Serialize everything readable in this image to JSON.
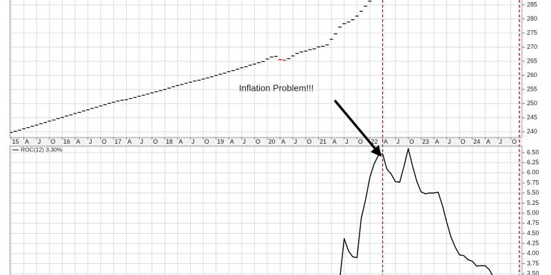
{
  "chart_data": [
    {
      "type": "price",
      "annotation": "Inflation Problem!!!",
      "up_color": "#000000",
      "down_color": "#cc0000",
      "xlim": [
        "2015-01",
        "2024-12"
      ],
      "ylim": [
        238,
        286.7
      ],
      "yticks": [
        240,
        245,
        250,
        255,
        260,
        265,
        270,
        275,
        280,
        285
      ],
      "grid": true,
      "markers": [
        "2022-04",
        "2024-12"
      ],
      "marker_color": "#cc0000",
      "xticks": [
        {
          "value": "2015-01",
          "label": "15"
        },
        {
          "value": "2015-04",
          "label": "A"
        },
        {
          "value": "2015-07",
          "label": "J"
        },
        {
          "value": "2015-10",
          "label": "O"
        },
        {
          "value": "2016-01",
          "label": "16"
        },
        {
          "value": "2016-04",
          "label": "A"
        },
        {
          "value": "2016-07",
          "label": "J"
        },
        {
          "value": "2016-10",
          "label": "O"
        },
        {
          "value": "2017-01",
          "label": "17"
        },
        {
          "value": "2017-04",
          "label": "A"
        },
        {
          "value": "2017-07",
          "label": "J"
        },
        {
          "value": "2017-10",
          "label": "O"
        },
        {
          "value": "2018-01",
          "label": "18"
        },
        {
          "value": "2018-04",
          "label": "A"
        },
        {
          "value": "2018-07",
          "label": "J"
        },
        {
          "value": "2018-10",
          "label": "O"
        },
        {
          "value": "2019-01",
          "label": "19"
        },
        {
          "value": "2019-04",
          "label": "A"
        },
        {
          "value": "2019-07",
          "label": "J"
        },
        {
          "value": "2019-10",
          "label": "O"
        },
        {
          "value": "2020-01",
          "label": "20"
        },
        {
          "value": "2020-04",
          "label": "A"
        },
        {
          "value": "2020-07",
          "label": "J"
        },
        {
          "value": "2020-10",
          "label": "O"
        },
        {
          "value": "2021-01",
          "label": "21"
        },
        {
          "value": "2021-04",
          "label": "A"
        },
        {
          "value": "2021-07",
          "label": "J"
        },
        {
          "value": "2021-10",
          "label": "O"
        },
        {
          "value": "2022-01",
          "label": "22"
        },
        {
          "value": "2022-04",
          "label": "A"
        },
        {
          "value": "2022-07",
          "label": "J"
        },
        {
          "value": "2022-10",
          "label": "O"
        },
        {
          "value": "2023-01",
          "label": "23"
        },
        {
          "value": "2023-04",
          "label": "A"
        },
        {
          "value": "2023-07",
          "label": "J"
        },
        {
          "value": "2023-10",
          "label": "O"
        },
        {
          "value": "2024-01",
          "label": "24"
        },
        {
          "value": "2024-04",
          "label": "A"
        },
        {
          "value": "2024-07",
          "label": "J"
        },
        {
          "value": "2024-10",
          "label": "O"
        }
      ],
      "x": [
        "2015-01",
        "2015-02",
        "2015-03",
        "2015-04",
        "2015-05",
        "2015-06",
        "2015-07",
        "2015-08",
        "2015-09",
        "2015-10",
        "2015-11",
        "2015-12",
        "2016-01",
        "2016-02",
        "2016-03",
        "2016-04",
        "2016-05",
        "2016-06",
        "2016-07",
        "2016-08",
        "2016-09",
        "2016-10",
        "2016-11",
        "2016-12",
        "2017-01",
        "2017-02",
        "2017-03",
        "2017-04",
        "2017-05",
        "2017-06",
        "2017-07",
        "2017-08",
        "2017-09",
        "2017-10",
        "2017-11",
        "2017-12",
        "2018-01",
        "2018-02",
        "2018-03",
        "2018-04",
        "2018-05",
        "2018-06",
        "2018-07",
        "2018-08",
        "2018-09",
        "2018-10",
        "2018-11",
        "2018-12",
        "2019-01",
        "2019-02",
        "2019-03",
        "2019-04",
        "2019-05",
        "2019-06",
        "2019-07",
        "2019-08",
        "2019-09",
        "2019-10",
        "2019-11",
        "2019-12",
        "2020-01",
        "2020-02",
        "2020-03",
        "2020-04",
        "2020-05",
        "2020-06",
        "2020-07",
        "2020-08",
        "2020-09",
        "2020-10",
        "2020-11",
        "2020-12",
        "2021-01",
        "2021-02",
        "2021-03",
        "2021-04",
        "2021-05",
        "2021-06",
        "2021-07",
        "2021-08",
        "2021-09",
        "2021-10",
        "2021-11",
        "2021-12",
        "2022-01"
      ],
      "values": [
        239.8,
        240.2,
        240.6,
        241.1,
        241.5,
        242.0,
        242.4,
        242.9,
        243.3,
        243.8,
        244.2,
        244.7,
        245.1,
        245.6,
        246.0,
        246.5,
        246.9,
        247.4,
        247.8,
        248.3,
        248.7,
        249.2,
        249.6,
        250.1,
        250.5,
        250.9,
        251.2,
        251.4,
        251.8,
        252.2,
        252.6,
        253.0,
        253.4,
        253.8,
        254.2,
        254.6,
        255.0,
        255.5,
        256.0,
        256.4,
        256.8,
        257.2,
        257.6,
        258.0,
        258.3,
        258.7,
        259.1,
        259.5,
        260.0,
        260.4,
        260.8,
        261.3,
        261.7,
        262.2,
        262.7,
        263.1,
        263.6,
        264.0,
        264.5,
        264.9,
        265.8,
        266.5,
        266.7,
        265.6,
        265.4,
        265.9,
        266.9,
        267.8,
        268.3,
        268.6,
        269.1,
        269.4,
        270.1,
        270.3,
        270.8,
        272.8,
        274.7,
        277.1,
        278.3,
        278.9,
        279.7,
        281.0,
        282.7,
        284.5,
        286.3
      ]
    },
    {
      "type": "line",
      "xlim": [
        "2015-01",
        "2024-12"
      ],
      "ylim": [
        3.47,
        6.67
      ],
      "yticks": [
        {
          "value": 3.5,
          "label": "3.50"
        },
        {
          "value": 3.75,
          "label": "3.75"
        },
        {
          "value": 4,
          "label": "4.00"
        },
        {
          "value": 4.25,
          "label": "4.25"
        },
        {
          "value": 4.5,
          "label": "4.50"
        },
        {
          "value": 4.75,
          "label": "4.75"
        },
        {
          "value": 5,
          "label": "5.00"
        },
        {
          "value": 5.25,
          "label": "5.25"
        },
        {
          "value": 5.5,
          "label": "5.50"
        },
        {
          "value": 5.75,
          "label": "5.75"
        },
        {
          "value": 6,
          "label": "6.00"
        },
        {
          "value": 6.25,
          "label": "6.25"
        },
        {
          "value": 6.5,
          "label": "6.50"
        }
      ],
      "grid": true,
      "x": [
        "2021-06",
        "2021-07",
        "2021-08",
        "2021-09",
        "2021-10",
        "2021-11",
        "2021-12",
        "2022-01",
        "2022-02",
        "2022-03",
        "2022-04",
        "2022-05",
        "2022-06",
        "2022-07",
        "2022-08",
        "2022-09",
        "2022-10",
        "2022-11",
        "2022-12",
        "2023-01",
        "2023-02",
        "2023-03",
        "2023-04",
        "2023-05",
        "2023-06",
        "2023-07",
        "2023-08",
        "2023-09",
        "2023-10",
        "2023-11",
        "2023-12",
        "2024-01",
        "2024-02",
        "2024-03",
        "2024-04",
        "2024-05",
        "2024-06"
      ],
      "series": [
        {
          "name": "ROC(12) 3.30%",
          "color": "#000000",
          "values": [
            3.4,
            4.37,
            4.07,
            3.92,
            3.9,
            4.88,
            5.33,
            5.88,
            6.22,
            6.43,
            6.47,
            6.09,
            5.97,
            5.78,
            5.77,
            6.16,
            6.6,
            6.17,
            5.79,
            5.53,
            5.48,
            5.5,
            5.5,
            5.52,
            5.19,
            4.78,
            4.41,
            4.16,
            3.97,
            3.95,
            3.85,
            3.81,
            3.69,
            3.7,
            3.7,
            3.6,
            3.4
          ]
        }
      ]
    }
  ]
}
